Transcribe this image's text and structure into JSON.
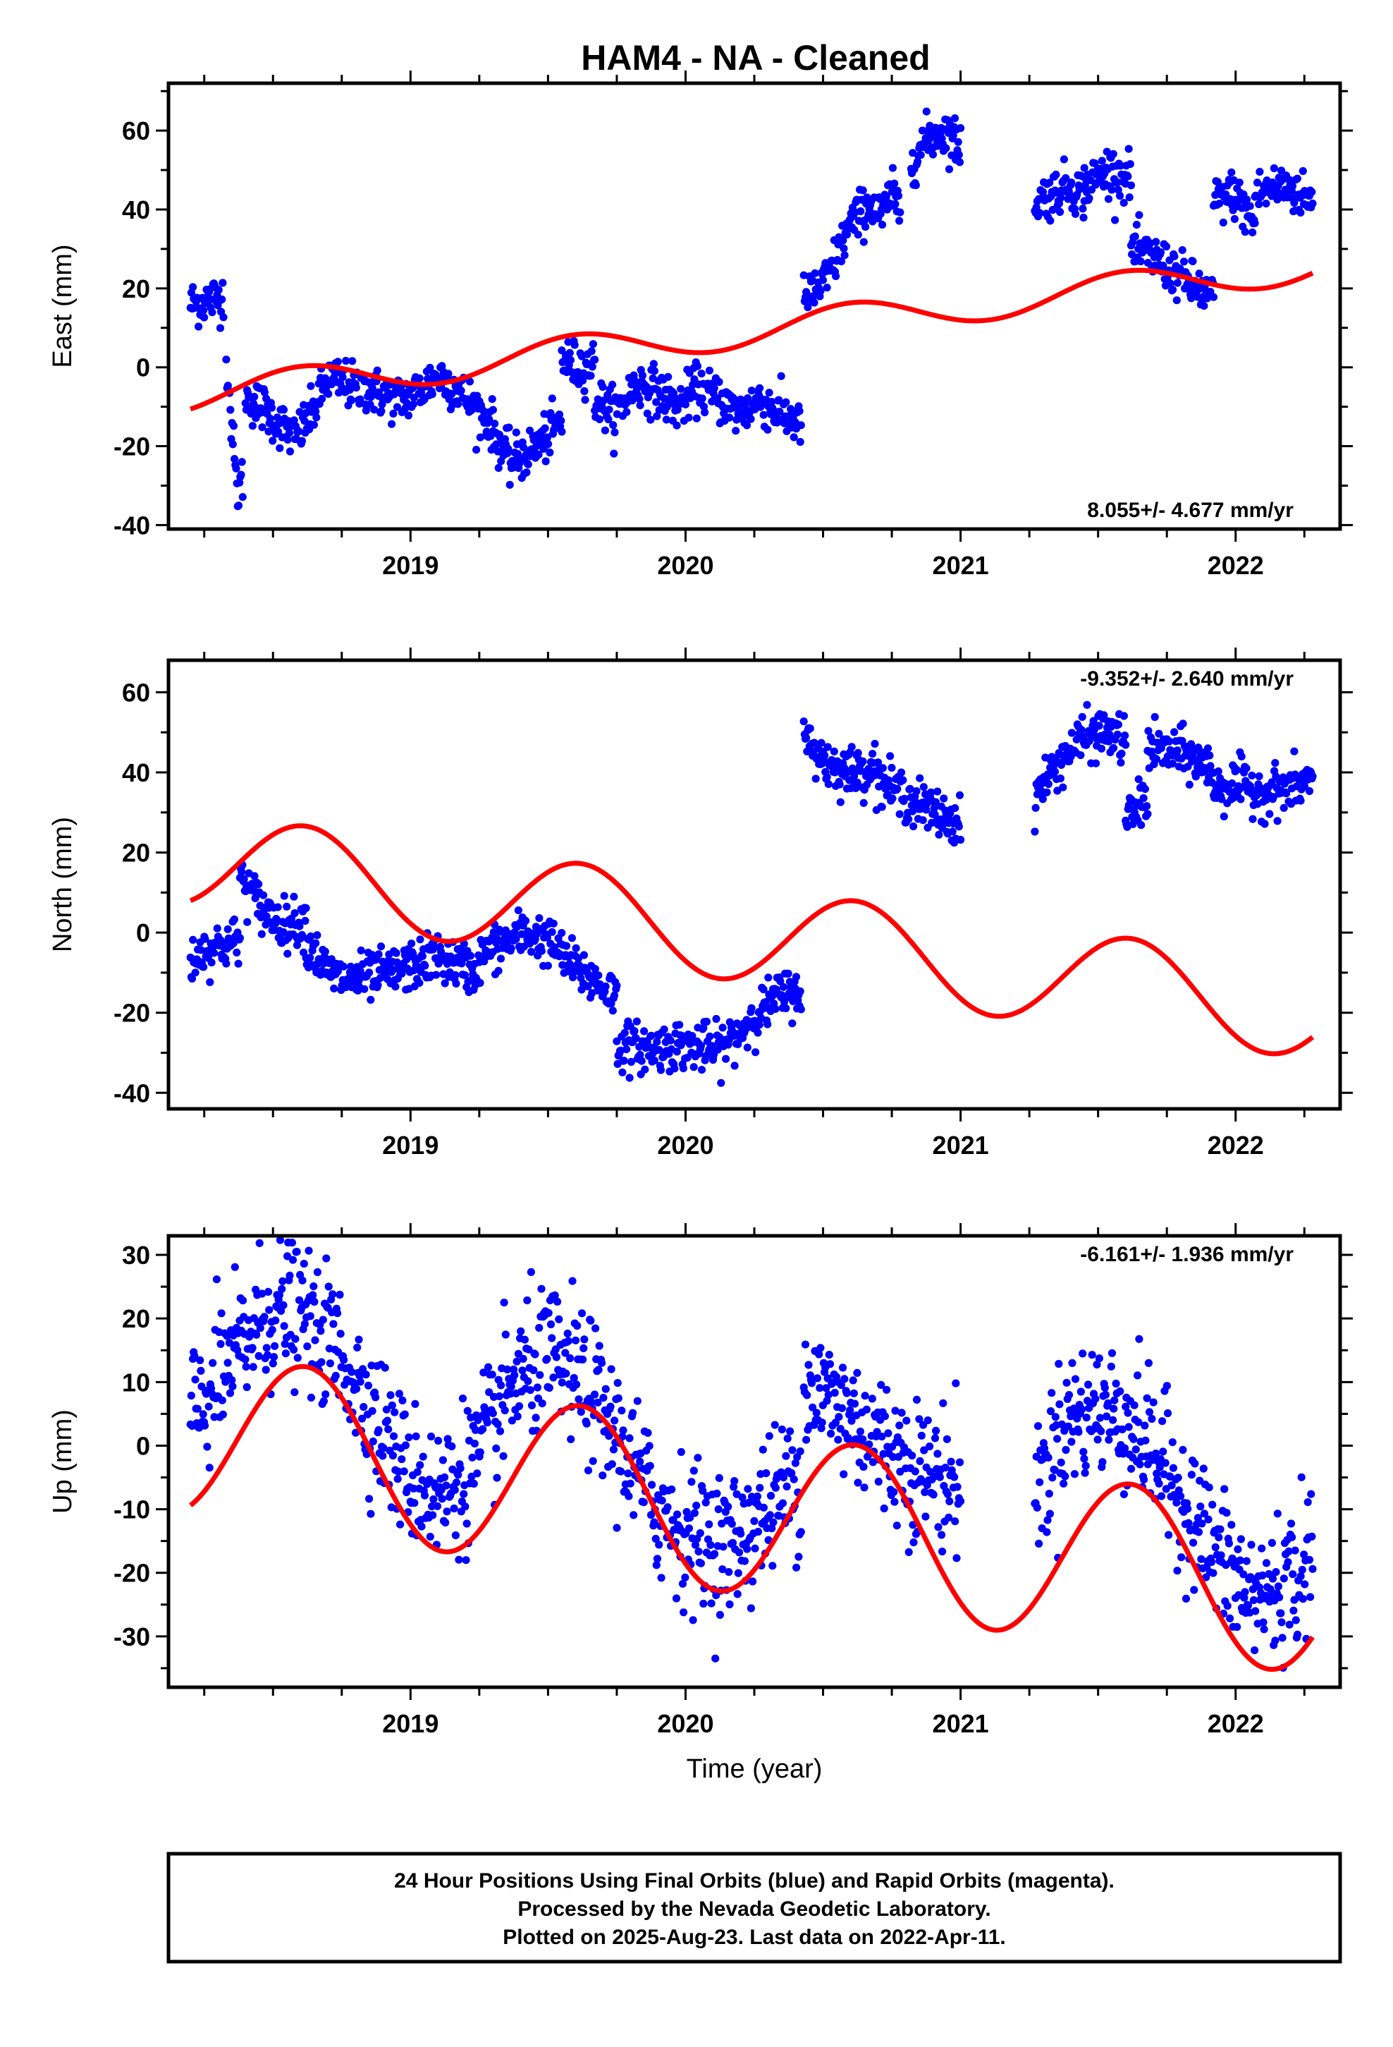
{
  "title": "HAM4  - NA - Cleaned",
  "footer": {
    "lines": [
      "24 Hour Positions Using Final Orbits (blue) and Rapid Orbits (magenta).",
      "Processed by the Nevada Geodetic Laboratory.",
      "Plotted on 2025-Aug-23. Last data on 2022-Apr-11."
    ]
  },
  "colors": {
    "final_orbits": "#0000ff",
    "model": "#ff0000",
    "frame": "#000000"
  },
  "chart_data": [
    {
      "type": "scatter",
      "component": "east",
      "ylabel": "East (mm)",
      "xlabel": "",
      "rate_label": "8.055+/- 4.677 mm/yr",
      "xlim": [
        2018.12,
        2022.38
      ],
      "ylim": [
        -41,
        72
      ],
      "x_ticks": [
        2019,
        2020,
        2021,
        2022
      ],
      "y_ticks": [
        -40,
        -20,
        0,
        20,
        40,
        60
      ],
      "x_range": [
        2018.2,
        2022.28
      ],
      "segments": [
        {
          "x": [
            2018.2,
            2018.32
          ],
          "anchors": [
            16,
            17,
            18
          ]
        },
        {
          "x": [
            2018.33,
            2018.39
          ],
          "anchors": [
            3,
            -15,
            -32,
            -28
          ]
        },
        {
          "x": [
            2018.4,
            2018.82
          ],
          "anchors": [
            -8,
            -10,
            -14,
            -18,
            -12,
            -3,
            -4,
            -6
          ]
        },
        {
          "x": [
            2018.83,
            2019.3
          ],
          "anchors": [
            -5,
            -7,
            -8,
            -6,
            -2,
            -5,
            -10,
            -15
          ]
        },
        {
          "x": [
            2019.3,
            2019.55
          ],
          "anchors": [
            -16,
            -24,
            -22,
            -18,
            -14
          ]
        },
        {
          "x": [
            2019.55,
            2019.67
          ],
          "anchors": [
            2,
            0,
            1
          ]
        },
        {
          "x": [
            2019.67,
            2020.42
          ],
          "anchors": [
            -8,
            -12,
            -4,
            -6,
            -10,
            -5,
            -8,
            -12,
            -8,
            -12,
            -14
          ]
        },
        {
          "x": [
            2020.43,
            2020.68
          ],
          "anchors": [
            17,
            22,
            36,
            42
          ]
        },
        {
          "x": [
            2020.68,
            2020.78
          ],
          "anchors": [
            40,
            38,
            44,
            40
          ]
        },
        {
          "x": [
            2020.82,
            2021.0
          ],
          "anchors": [
            52,
            58,
            60,
            56
          ]
        },
        {
          "x": [
            2021.27,
            2021.45
          ],
          "anchors": [
            42,
            44,
            46,
            44
          ]
        },
        {
          "x": [
            2021.45,
            2021.62
          ],
          "anchors": [
            46,
            50,
            48
          ]
        },
        {
          "x": [
            2021.62,
            2021.92
          ],
          "anchors": [
            30,
            27,
            22,
            17
          ]
        },
        {
          "x": [
            2021.92,
            2022.07
          ],
          "anchors": [
            42,
            44,
            36
          ]
        },
        {
          "x": [
            2022.07,
            2022.28
          ],
          "anchors": [
            44,
            46,
            42
          ]
        }
      ],
      "model": {
        "x0": 2018.2,
        "y0": -7.2,
        "rate": 8.055,
        "annual_amp": 4.2,
        "annual_phase_year": 2019.35
      }
    },
    {
      "type": "scatter",
      "component": "north",
      "ylabel": "North (mm)",
      "xlabel": "",
      "rate_label": "-9.352+/- 2.640 mm/yr",
      "xlim": [
        2018.12,
        2022.38
      ],
      "ylim": [
        -44,
        68
      ],
      "x_ticks": [
        2019,
        2020,
        2021,
        2022
      ],
      "y_ticks": [
        -40,
        -20,
        0,
        20,
        40,
        60
      ],
      "x_range": [
        2018.2,
        2022.28
      ],
      "segments": [
        {
          "x": [
            2018.2,
            2018.38
          ],
          "anchors": [
            -7,
            -4,
            -3,
            -2
          ]
        },
        {
          "x": [
            2018.38,
            2018.62
          ],
          "anchors": [
            14,
            6,
            2,
            3
          ]
        },
        {
          "x": [
            2018.62,
            2019.25
          ],
          "anchors": [
            -2,
            -10,
            -12,
            -11,
            -10,
            -8,
            -6,
            -8,
            -10
          ]
        },
        {
          "x": [
            2019.25,
            2019.75
          ],
          "anchors": [
            -6,
            -3,
            0,
            -2,
            -8,
            -12,
            -16
          ]
        },
        {
          "x": [
            2019.75,
            2020.1
          ],
          "anchors": [
            -28,
            -29,
            -28,
            -29
          ]
        },
        {
          "x": [
            2020.1,
            2020.42
          ],
          "anchors": [
            -30,
            -26,
            -20,
            -16,
            -14
          ]
        },
        {
          "x": [
            2020.43,
            2020.7
          ],
          "anchors": [
            48,
            42,
            40,
            42
          ]
        },
        {
          "x": [
            2020.7,
            2021.0
          ],
          "anchors": [
            38,
            34,
            30,
            27
          ]
        },
        {
          "x": [
            2021.27,
            2021.6
          ],
          "anchors": [
            34,
            42,
            48,
            50,
            48
          ]
        },
        {
          "x": [
            2021.6,
            2021.68
          ],
          "anchors": [
            28,
            34
          ]
        },
        {
          "x": [
            2021.68,
            2021.92
          ],
          "anchors": [
            46,
            45,
            44,
            40
          ]
        },
        {
          "x": [
            2021.92,
            2022.28
          ],
          "anchors": [
            36,
            37,
            35,
            36,
            38
          ]
        }
      ],
      "model": {
        "x0": 2018.2,
        "y0": 18.5,
        "rate": -9.352,
        "annual_amp": 12.0,
        "annual_phase_year": 2018.37
      }
    },
    {
      "type": "scatter",
      "component": "up",
      "ylabel": "Up (mm)",
      "xlabel": "Time (year)",
      "rate_label": "-6.161+/- 1.936 mm/yr",
      "xlim": [
        2018.12,
        2022.38
      ],
      "ylim": [
        -38,
        33
      ],
      "x_ticks": [
        2019,
        2020,
        2021,
        2022
      ],
      "y_ticks": [
        -30,
        -20,
        -10,
        0,
        10,
        20,
        30
      ],
      "x_range": [
        2018.2,
        2022.28
      ],
      "segments": [
        {
          "x": [
            2018.2,
            2020.42
          ],
          "anchors": [
            4,
            12,
            20,
            22,
            16,
            6,
            -4,
            -8,
            -2,
            10,
            14,
            10,
            0,
            -10,
            -14,
            -16,
            -10,
            -4
          ]
        },
        {
          "x": [
            2020.43,
            2021.0
          ],
          "anchors": [
            10,
            6,
            0,
            -4,
            -6
          ]
        },
        {
          "x": [
            2021.27,
            2022.28
          ],
          "anchors": [
            -8,
            4,
            6,
            4,
            -2,
            -10,
            -18,
            -24,
            -22,
            -18
          ]
        }
      ],
      "model": {
        "x0": 2018.2,
        "y0": 2.0,
        "rate": -6.161,
        "annual_amp": 13.0,
        "annual_phase_year": 2018.37
      }
    }
  ]
}
